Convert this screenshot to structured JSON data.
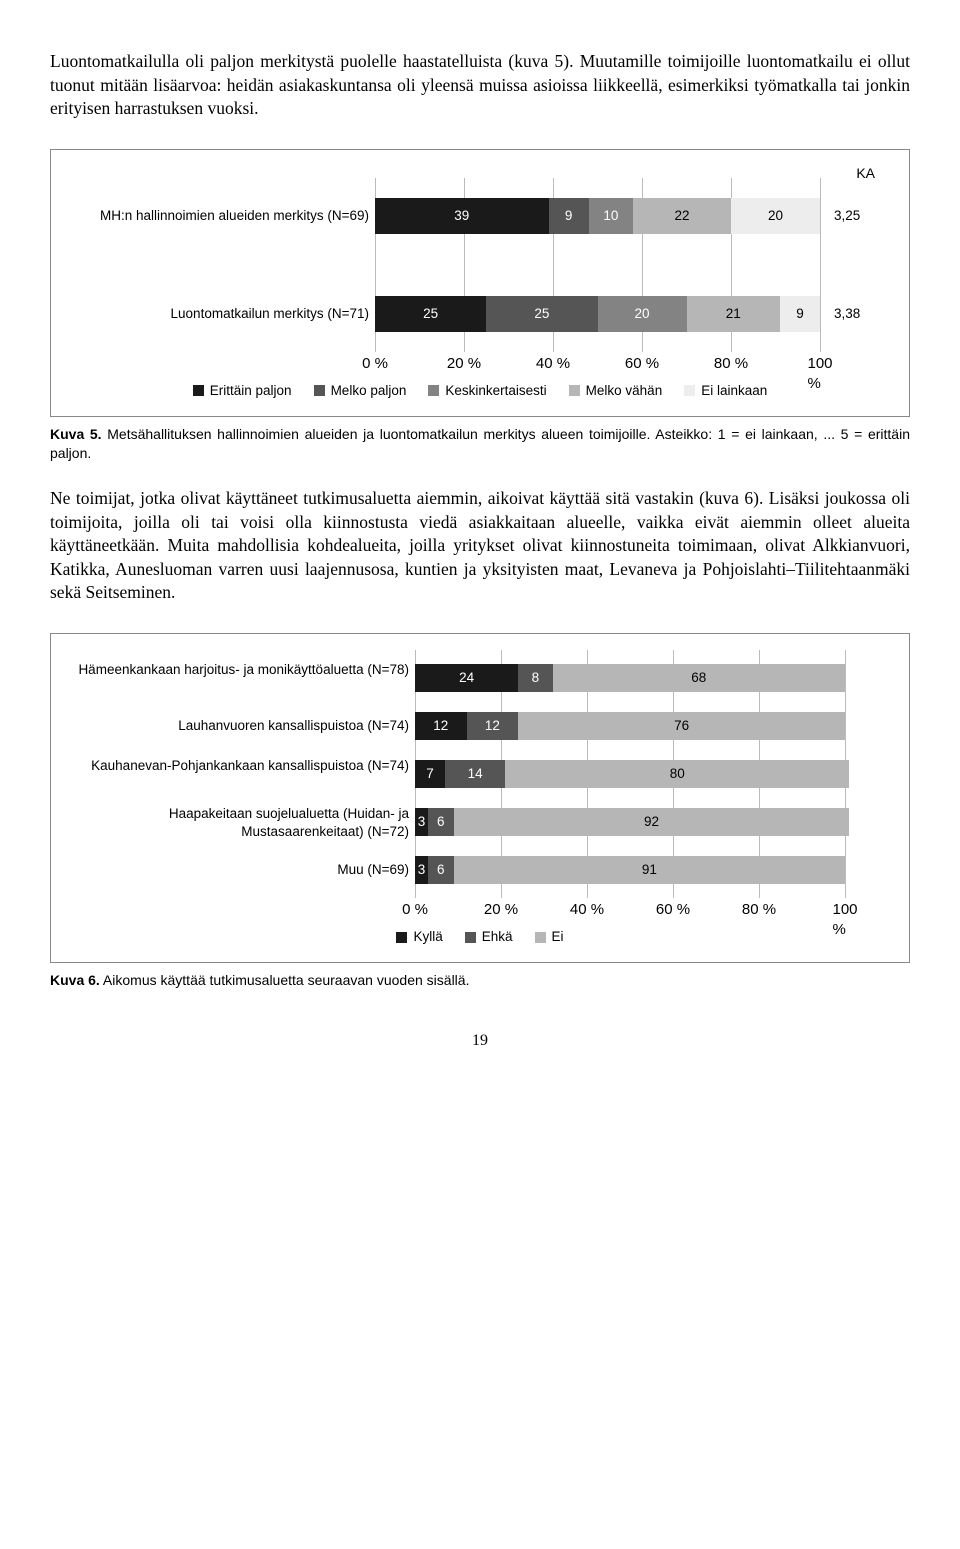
{
  "intro_para": "Luontomatkailulla oli paljon merkitystä puolelle haastatelluista (kuva 5). Muutamille toimijoille luontomatkailu ei ollut tuonut mitään lisäarvoa: heidän asiakaskuntansa oli yleensä muissa asioissa liikkeellä, esimerkiksi työmatkalla tai jonkin erityisen harrastuksen vuoksi.",
  "chart5": {
    "ka_header": "KA",
    "xticks": [
      "0 %",
      "20 %",
      "40 %",
      "60 %",
      "80 %",
      "100 %"
    ],
    "xtick_positions": [
      0,
      20,
      40,
      60,
      80,
      100
    ],
    "rows": [
      {
        "label": "MH:n hallinnoimien alueiden merkitys (N=69)",
        "ka": "3,25",
        "segments": [
          {
            "v": 39,
            "label": "39",
            "color": "#1a1a1a",
            "tc": "white"
          },
          {
            "v": 9,
            "label": "9",
            "color": "#555555",
            "tc": "white"
          },
          {
            "v": 10,
            "label": "10",
            "color": "#838383",
            "tc": "white"
          },
          {
            "v": 22,
            "label": "22",
            "color": "#b6b6b6",
            "tc": "black"
          },
          {
            "v": 20,
            "label": "20",
            "color": "#ededed",
            "tc": "black"
          }
        ]
      },
      {
        "label": "Luontomatkailun merkitys (N=71)",
        "ka": "3,38",
        "segments": [
          {
            "v": 25,
            "label": "25",
            "color": "#1a1a1a",
            "tc": "white"
          },
          {
            "v": 25,
            "label": "25",
            "color": "#555555",
            "tc": "white"
          },
          {
            "v": 20,
            "label": "20",
            "color": "#838383",
            "tc": "white"
          },
          {
            "v": 21,
            "label": "21",
            "color": "#b6b6b6",
            "tc": "black"
          },
          {
            "v": 9,
            "label": "9",
            "color": "#ededed",
            "tc": "black"
          }
        ]
      }
    ],
    "legend": [
      {
        "label": "Erittäin paljon",
        "color": "#1a1a1a"
      },
      {
        "label": "Melko paljon",
        "color": "#555555"
      },
      {
        "label": "Keskinkertaisesti",
        "color": "#838383"
      },
      {
        "label": "Melko vähän",
        "color": "#b6b6b6"
      },
      {
        "label": "Ei lainkaan",
        "color": "#ededed"
      }
    ]
  },
  "caption5_b": "Kuva 5.",
  "caption5": " Metsähallituksen hallinnoimien alueiden ja luontomatkailun merkitys alueen toimijoille. Asteikko: 1 = ei lainkaan, ... 5 = erittäin paljon.",
  "mid_para": "Ne toimijat, jotka olivat käyttäneet tutkimusaluetta aiemmin, aikoivat käyttää sitä vastakin (kuva 6). Lisäksi joukossa oli toimijoita, joilla oli tai voisi olla kiinnostusta viedä asiakkaitaan alueelle, vaikka eivät aiemmin olleet alueita käyttäneetkään. Muita mahdollisia kohdealueita, joilla yritykset olivat kiinnostuneita toimimaan, olivat Alkkianvuori, Katikka, Aunesluoman varren uusi laajennusosa, kuntien ja yksityisten maat, Levaneva ja Pohjoislahti–Tiilitehtaanmäki sekä Seitseminen.",
  "chart6": {
    "xticks": [
      "0 %",
      "20 %",
      "40 %",
      "60 %",
      "80 %",
      "100 %"
    ],
    "xtick_positions": [
      0,
      20,
      40,
      60,
      80,
      100
    ],
    "rows": [
      {
        "label": "Hämeenkankaan harjoitus- ja monikäyttöaluetta (N=78)",
        "segments": [
          {
            "v": 24,
            "label": "24",
            "color": "#1a1a1a",
            "tc": "white"
          },
          {
            "v": 8,
            "label": "8",
            "color": "#555555",
            "tc": "white"
          },
          {
            "v": 68,
            "label": "68",
            "color": "#b6b6b6",
            "tc": "black"
          }
        ]
      },
      {
        "label": "Lauhanvuoren kansallispuistoa (N=74)",
        "segments": [
          {
            "v": 12,
            "label": "12",
            "color": "#1a1a1a",
            "tc": "white"
          },
          {
            "v": 12,
            "label": "12",
            "color": "#555555",
            "tc": "white"
          },
          {
            "v": 76,
            "label": "76",
            "color": "#b6b6b6",
            "tc": "black"
          }
        ]
      },
      {
        "label": "Kauhanevan-Pohjankankaan kansallispuistoa (N=74)",
        "segments": [
          {
            "v": 7,
            "label": "7",
            "color": "#1a1a1a",
            "tc": "white"
          },
          {
            "v": 14,
            "label": "14",
            "color": "#555555",
            "tc": "white"
          },
          {
            "v": 80,
            "label": "80",
            "color": "#b6b6b6",
            "tc": "black"
          }
        ]
      },
      {
        "label": "Haapakeitaan suojelualuetta (Huidan- ja Mustasaarenkeitaat) (N=72)",
        "segments": [
          {
            "v": 3,
            "label": "3",
            "color": "#1a1a1a",
            "tc": "white"
          },
          {
            "v": 6,
            "label": "6",
            "color": "#555555",
            "tc": "white"
          },
          {
            "v": 92,
            "label": "92",
            "color": "#b6b6b6",
            "tc": "black"
          }
        ]
      },
      {
        "label": "Muu (N=69)",
        "segments": [
          {
            "v": 3,
            "label": "3",
            "color": "#1a1a1a",
            "tc": "white"
          },
          {
            "v": 6,
            "label": "6",
            "color": "#555555",
            "tc": "white"
          },
          {
            "v": 91,
            "label": "91",
            "color": "#b6b6b6",
            "tc": "black"
          }
        ]
      }
    ],
    "legend": [
      {
        "label": "Kyllä",
        "color": "#1a1a1a"
      },
      {
        "label": "Ehkä",
        "color": "#555555"
      },
      {
        "label": "Ei",
        "color": "#b6b6b6"
      }
    ]
  },
  "caption6_b": "Kuva 6.",
  "caption6": " Aikomus käyttää tutkimusaluetta seuraavan vuoden sisällä.",
  "pagenum": "19",
  "layout": {
    "chart5_label_width": 300,
    "chart5_bar_width": 445,
    "chart5_row_height": 36,
    "chart5_row_gap": 62,
    "chart6_label_width": 340,
    "chart6_bar_width": 430,
    "chart6_row_height": 28,
    "chart6_row_gap": 20
  }
}
